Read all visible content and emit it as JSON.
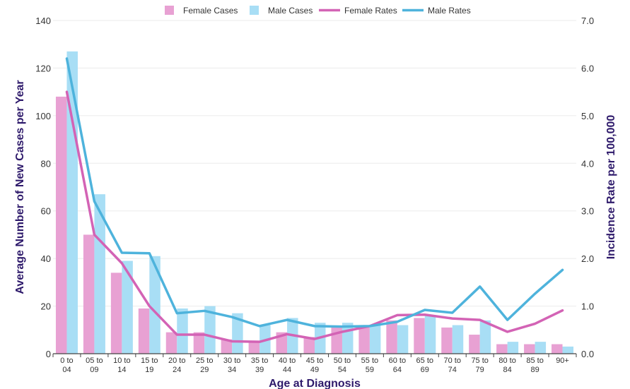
{
  "chart_data": {
    "type": "bar",
    "categories": [
      [
        "0 to",
        "04"
      ],
      [
        "05 to",
        "09"
      ],
      [
        "10 to",
        "14"
      ],
      [
        "15 to",
        "19"
      ],
      [
        "20 to",
        "24"
      ],
      [
        "25 to",
        "29"
      ],
      [
        "30 to",
        "34"
      ],
      [
        "35 to",
        "39"
      ],
      [
        "40 to",
        "44"
      ],
      [
        "45 to",
        "49"
      ],
      [
        "50 to",
        "54"
      ],
      [
        "55 to",
        "59"
      ],
      [
        "60 to",
        "64"
      ],
      [
        "65 to",
        "69"
      ],
      [
        "70 to",
        "74"
      ],
      [
        "75 to",
        "79"
      ],
      [
        "80 to",
        "84"
      ],
      [
        "85 to",
        "89"
      ],
      [
        "90+",
        ""
      ]
    ],
    "bar_series": [
      {
        "name": "Female Cases",
        "color": "#e8a1d3",
        "values": [
          108,
          50,
          34,
          19,
          9,
          9,
          6,
          5,
          9,
          7,
          11,
          11,
          14,
          15,
          11,
          8,
          4,
          4,
          4
        ]
      },
      {
        "name": "Male Cases",
        "color": "#a8def5",
        "values": [
          127,
          67,
          39,
          41,
          19,
          20,
          17,
          12,
          15,
          13,
          13,
          12,
          12,
          16,
          12,
          14,
          5,
          5,
          3
        ]
      }
    ],
    "line_series": [
      {
        "name": "Female Rates",
        "color": "#d363b5",
        "values": [
          5.5,
          2.5,
          1.9,
          1.0,
          0.4,
          0.4,
          0.26,
          0.25,
          0.41,
          0.31,
          0.46,
          0.58,
          0.81,
          0.82,
          0.74,
          0.71,
          0.46,
          0.63,
          0.91
        ]
      },
      {
        "name": "Male Rates",
        "color": "#4eb3dc",
        "values": [
          6.2,
          3.2,
          2.12,
          2.11,
          0.85,
          0.9,
          0.77,
          0.58,
          0.71,
          0.58,
          0.57,
          0.58,
          0.67,
          0.92,
          0.86,
          1.41,
          0.71,
          1.26,
          1.76
        ]
      }
    ],
    "xlabel": "Age at Diagnosis",
    "ylabel": "Average Number of New Cases per Year",
    "y2label": "Incidence Rate per 100,000",
    "ylim": [
      0,
      140
    ],
    "y2lim": [
      0,
      7
    ],
    "yticks": [
      "0",
      "20",
      "40",
      "60",
      "80",
      "100",
      "120",
      "140"
    ],
    "y2ticks": [
      "0.0",
      "1.0",
      "2.0",
      "3.0",
      "4.0",
      "5.0",
      "6.0",
      "7.0"
    ],
    "grid": true,
    "legend_position": "top-center"
  }
}
